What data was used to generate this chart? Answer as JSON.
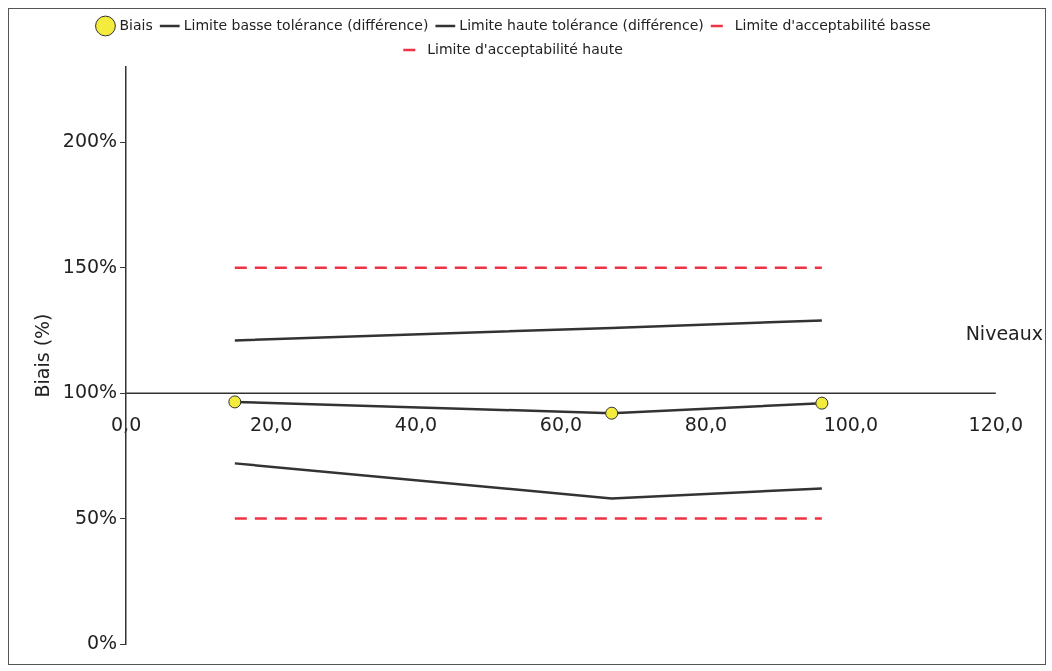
{
  "chart_data": {
    "type": "line",
    "xlabel": "Niveaux",
    "ylabel": "Biais (%)",
    "x": [
      15,
      67,
      96
    ],
    "xlim": [
      0,
      120
    ],
    "xticks": [
      {
        "value": 0,
        "label": "0,0"
      },
      {
        "value": 20,
        "label": "20,0"
      },
      {
        "value": 40,
        "label": "40,0"
      },
      {
        "value": 60,
        "label": "60,0"
      },
      {
        "value": 80,
        "label": "80,0"
      },
      {
        "value": 100,
        "label": "100,0"
      },
      {
        "value": 120,
        "label": "120,0"
      }
    ],
    "ref_lines": [
      {
        "axis": "y",
        "value": 100,
        "color": "#333333"
      }
    ],
    "ylim": [
      0,
      230
    ],
    "yticks": [
      {
        "value": 0,
        "label": "0%"
      },
      {
        "value": 50,
        "label": "50%"
      },
      {
        "value": 100,
        "label": "100%"
      },
      {
        "value": 150,
        "label": "150%"
      },
      {
        "value": 200,
        "label": "200%"
      }
    ],
    "grid": false,
    "legend": "top",
    "series": [
      {
        "name": "Biais",
        "color": "#333333",
        "values": [
          96.5,
          92,
          96
        ],
        "marker": "circle",
        "line_style": "solid"
      },
      {
        "name": "Limite basse tolérance (différence)",
        "color": "#333333",
        "values": [
          72,
          58,
          62
        ],
        "marker": "none",
        "line_style": "solid"
      },
      {
        "name": "Limite haute tolérance (différence)",
        "color": "#333333",
        "values": [
          121,
          126,
          129
        ],
        "marker": "none",
        "line_style": "solid"
      },
      {
        "name": "Limite d'acceptabilité basse",
        "color": "#ee3344",
        "values": [
          50,
          50,
          50
        ],
        "marker": "none",
        "line_style": "dashed"
      },
      {
        "name": "Limite d'acceptabilité haute",
        "color": "#ee3344",
        "values": [
          150,
          150,
          150
        ],
        "marker": "none",
        "line_style": "dashed"
      }
    ]
  }
}
